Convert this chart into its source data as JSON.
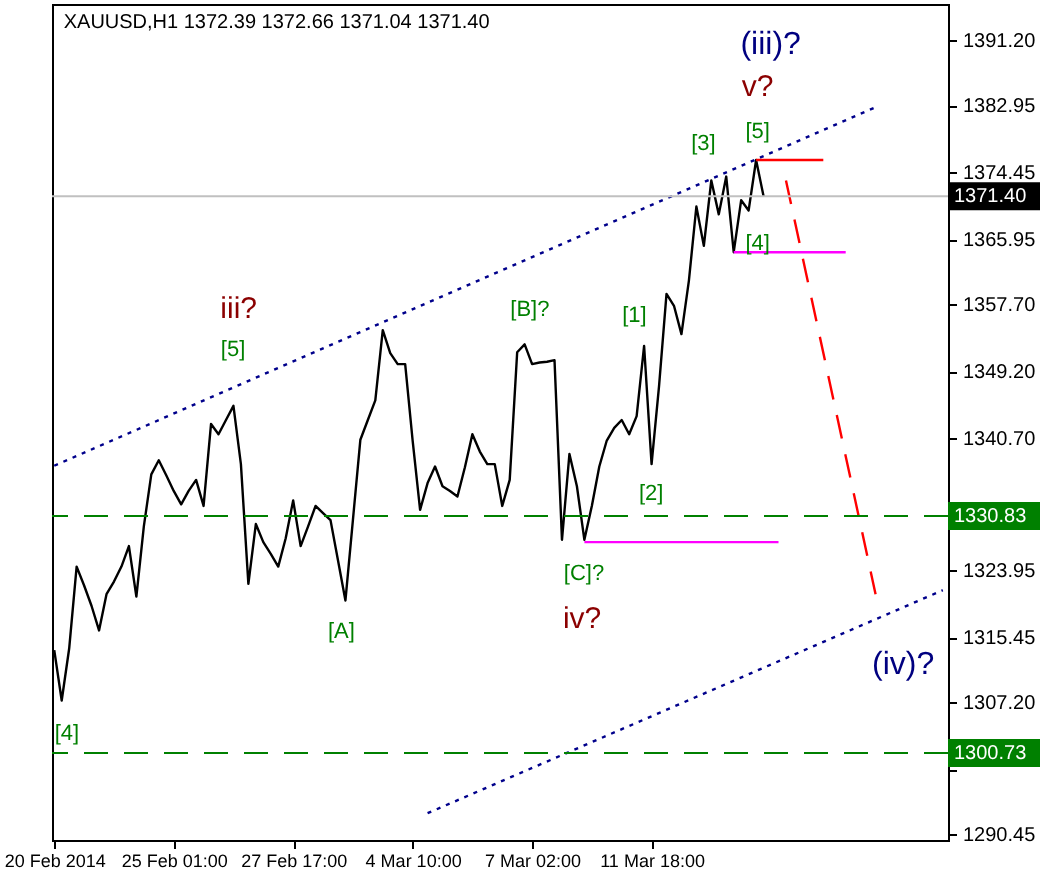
{
  "chart_data": {
    "type": "line",
    "title": "XAUUSD,H1  1372.39 1372.66 1371.04 1371.40",
    "categories": [
      "20 Feb 2014",
      null,
      null,
      null,
      null,
      null,
      null,
      null,
      null,
      null,
      null,
      null,
      null,
      null,
      null,
      null,
      "25 Feb 01:00",
      null,
      null,
      null,
      null,
      null,
      null,
      null,
      null,
      null,
      null,
      null,
      null,
      null,
      null,
      null,
      "27 Feb 17:00",
      null,
      null,
      null,
      null,
      null,
      null,
      null,
      null,
      null,
      null,
      null,
      null,
      null,
      null,
      null,
      "4 Mar 10:00",
      null,
      null,
      null,
      null,
      null,
      null,
      null,
      null,
      null,
      null,
      null,
      null,
      null,
      null,
      null,
      "7 Mar 02:00",
      null,
      null,
      null,
      null,
      null,
      null,
      null,
      null,
      null,
      null,
      null,
      null,
      null,
      null,
      null,
      "11 Mar 18:00",
      null,
      null,
      null,
      null,
      null,
      null,
      null,
      null,
      null,
      null,
      null,
      null,
      null,
      null,
      null,
      null,
      null,
      null,
      null,
      null,
      null,
      null,
      null,
      null,
      null,
      null,
      null,
      null,
      null,
      null,
      null,
      null,
      null,
      null,
      null,
      null,
      null,
      null,
      null
    ],
    "ylim": [
      1289.7,
      1395.8
    ],
    "yticks": [
      {
        "value": 1290.45,
        "label": "1290.45"
      },
      {
        "value": 1298.7,
        "label": null
      },
      {
        "value": 1307.2,
        "label": "1307.20"
      },
      {
        "value": 1315.45,
        "label": "1315.45"
      },
      {
        "value": 1323.95,
        "label": "1323.95"
      },
      {
        "value": 1332.45,
        "label": null
      },
      {
        "value": 1340.7,
        "label": "1340.70"
      },
      {
        "value": 1349.2,
        "label": "1349.20"
      },
      {
        "value": 1357.7,
        "label": "1357.70"
      },
      {
        "value": 1365.95,
        "label": "1365.95"
      },
      {
        "value": 1374.45,
        "label": "1374.45"
      },
      {
        "value": 1382.95,
        "label": "1382.95"
      },
      {
        "value": 1391.2,
        "label": "1391.20"
      }
    ],
    "series": [
      {
        "color": "#000000",
        "line_style": "solid",
        "values": [
          1313.8,
          1307.4,
          1314.0,
          1324.4,
          1322.0,
          1319.4,
          1316.3,
          1320.9,
          1322.5,
          1324.4,
          1327.0,
          1320.6,
          1329.5,
          1336.1,
          1337.9,
          1336.0,
          1334.0,
          1332.3,
          1334.0,
          1335.4,
          1332.1,
          1342.5,
          1341.2,
          1343.0,
          1344.8,
          1337.4,
          1322.2,
          1329.8,
          1327.5,
          1326.0,
          1324.4,
          1328.0,
          1332.8,
          1327.0,
          1329.5,
          1332.1,
          1331.2,
          1330.3,
          1325.2,
          1320.1,
          1330.3,
          1340.5,
          1343.0,
          1345.5,
          1354.4,
          1351.5,
          1350.1,
          1350.1,
          1340.4,
          1331.6,
          1335.0,
          1337.1,
          1334.6,
          1334.0,
          1333.3,
          1337.0,
          1341.2,
          1339.0,
          1337.4,
          1337.4,
          1332.1,
          1335.4,
          1351.6,
          1352.6,
          1350.1,
          1350.3,
          1350.4,
          1350.6,
          1327.8,
          1338.7,
          1334.6,
          1327.8,
          1332.1,
          1337.1,
          1340.4,
          1342.0,
          1343.0,
          1341.2,
          1343.5,
          1352.4,
          1337.4,
          1347.3,
          1359.0,
          1357.5,
          1353.9,
          1360.7,
          1370.1,
          1365.1,
          1373.4,
          1369.1,
          1373.9,
          1364.3,
          1370.9,
          1369.6,
          1376.0,
          1371.4,
          null,
          null,
          null,
          null,
          null,
          null,
          null,
          null,
          null,
          null,
          null,
          null,
          null,
          null,
          null,
          null,
          null,
          null,
          null,
          null,
          null,
          null,
          null,
          null
        ]
      },
      {
        "color": "#00008b",
        "line_style": "dotted",
        "values": [
          1337.2,
          null,
          null,
          null,
          null,
          null,
          null,
          null,
          null,
          null,
          null,
          null,
          null,
          null,
          null,
          null,
          null,
          null,
          null,
          null,
          null,
          null,
          null,
          null,
          null,
          null,
          null,
          null,
          null,
          null,
          null,
          null,
          null,
          null,
          null,
          null,
          null,
          null,
          null,
          null,
          null,
          null,
          null,
          null,
          null,
          null,
          null,
          null,
          null,
          null,
          null,
          null,
          null,
          null,
          null,
          null,
          null,
          null,
          null,
          null,
          null,
          null,
          null,
          null,
          null,
          null,
          null,
          null,
          null,
          null,
          null,
          null,
          null,
          null,
          null,
          null,
          null,
          null,
          null,
          null,
          null,
          null,
          null,
          null,
          null,
          null,
          null,
          null,
          null,
          null,
          null,
          null,
          null,
          null,
          null,
          null,
          null,
          null,
          null,
          null,
          null,
          null,
          null,
          null,
          null,
          null,
          null,
          null,
          null,
          null,
          1382.7,
          null,
          null,
          null,
          null,
          null,
          null,
          null,
          null,
          null
        ]
      },
      {
        "color": "#00008b",
        "line_style": "dotted",
        "values": [
          null,
          null,
          null,
          null,
          null,
          null,
          null,
          null,
          null,
          null,
          null,
          null,
          null,
          null,
          null,
          null,
          null,
          null,
          null,
          null,
          null,
          null,
          null,
          null,
          null,
          null,
          null,
          null,
          null,
          null,
          null,
          null,
          null,
          null,
          null,
          null,
          null,
          null,
          null,
          null,
          null,
          null,
          null,
          null,
          null,
          null,
          null,
          null,
          null,
          null,
          1293.1,
          null,
          null,
          null,
          null,
          null,
          null,
          null,
          null,
          null,
          null,
          null,
          null,
          null,
          null,
          null,
          null,
          null,
          null,
          null,
          null,
          null,
          null,
          null,
          null,
          null,
          null,
          null,
          null,
          null,
          null,
          null,
          null,
          null,
          null,
          null,
          null,
          null,
          null,
          null,
          null,
          null,
          null,
          null,
          null,
          null,
          null,
          null,
          null,
          null,
          null,
          null,
          null,
          null,
          null,
          null,
          null,
          null,
          null,
          null,
          null,
          null,
          null,
          null,
          null,
          null,
          null,
          null,
          null,
          1321.4
        ]
      },
      {
        "color": "#ff0000",
        "line_style": "dashed",
        "values": [
          null,
          null,
          null,
          null,
          null,
          null,
          null,
          null,
          null,
          null,
          null,
          null,
          null,
          null,
          null,
          null,
          null,
          null,
          null,
          null,
          null,
          null,
          null,
          null,
          null,
          null,
          null,
          null,
          null,
          null,
          null,
          null,
          null,
          null,
          null,
          null,
          null,
          null,
          null,
          null,
          null,
          null,
          null,
          null,
          null,
          null,
          null,
          null,
          null,
          null,
          null,
          null,
          null,
          null,
          null,
          null,
          null,
          null,
          null,
          null,
          null,
          null,
          null,
          null,
          null,
          null,
          null,
          null,
          null,
          null,
          null,
          null,
          null,
          null,
          null,
          null,
          null,
          null,
          null,
          null,
          null,
          null,
          null,
          null,
          null,
          null,
          null,
          null,
          null,
          null,
          null,
          null,
          null,
          null,
          null,
          null,
          null,
          null,
          1373.4,
          null,
          null,
          null,
          null,
          null,
          null,
          null,
          null,
          null,
          null,
          null,
          1320.9,
          null,
          null,
          null,
          null,
          null,
          null,
          null,
          null,
          null
        ]
      },
      {
        "color": "#ff0000",
        "line_style": "solid",
        "values": [
          null,
          null,
          null,
          null,
          null,
          null,
          null,
          null,
          null,
          null,
          null,
          null,
          null,
          null,
          null,
          null,
          null,
          null,
          null,
          null,
          null,
          null,
          null,
          null,
          null,
          null,
          null,
          null,
          null,
          null,
          null,
          null,
          null,
          null,
          null,
          null,
          null,
          null,
          null,
          null,
          null,
          null,
          null,
          null,
          null,
          null,
          null,
          null,
          null,
          null,
          null,
          null,
          null,
          null,
          null,
          null,
          null,
          null,
          null,
          null,
          null,
          null,
          null,
          null,
          null,
          null,
          null,
          null,
          null,
          null,
          null,
          null,
          null,
          null,
          null,
          null,
          null,
          null,
          null,
          null,
          null,
          null,
          null,
          null,
          null,
          null,
          null,
          null,
          null,
          null,
          null,
          null,
          null,
          null,
          1376.0,
          null,
          null,
          null,
          null,
          null,
          null,
          null,
          null,
          1376.0,
          null,
          null,
          null,
          null,
          null,
          null,
          null,
          null,
          null,
          null,
          null,
          null,
          null,
          null,
          null,
          null
        ]
      },
      {
        "color": "#ff00ff",
        "line_style": "solid",
        "values": [
          null,
          null,
          null,
          null,
          null,
          null,
          null,
          null,
          null,
          null,
          null,
          null,
          null,
          null,
          null,
          null,
          null,
          null,
          null,
          null,
          null,
          null,
          null,
          null,
          null,
          null,
          null,
          null,
          null,
          null,
          null,
          null,
          null,
          null,
          null,
          null,
          null,
          null,
          null,
          null,
          null,
          null,
          null,
          null,
          null,
          null,
          null,
          null,
          null,
          null,
          null,
          null,
          null,
          null,
          null,
          null,
          null,
          null,
          null,
          null,
          null,
          null,
          null,
          null,
          null,
          null,
          null,
          null,
          null,
          null,
          null,
          null,
          null,
          null,
          null,
          null,
          null,
          null,
          null,
          null,
          null,
          null,
          null,
          null,
          null,
          null,
          null,
          null,
          null,
          null,
          null,
          1364.3,
          null,
          null,
          null,
          null,
          null,
          null,
          null,
          null,
          null,
          null,
          null,
          null,
          null,
          null,
          1364.3,
          null,
          null,
          null,
          null,
          null,
          null,
          null,
          null,
          null,
          null,
          null,
          null,
          null
        ]
      },
      {
        "color": "#ff00ff",
        "line_style": "solid",
        "values": [
          null,
          null,
          null,
          null,
          null,
          null,
          null,
          null,
          null,
          null,
          null,
          null,
          null,
          null,
          null,
          null,
          null,
          null,
          null,
          null,
          null,
          null,
          null,
          null,
          null,
          null,
          null,
          null,
          null,
          null,
          null,
          null,
          null,
          null,
          null,
          null,
          null,
          null,
          null,
          null,
          null,
          null,
          null,
          null,
          null,
          null,
          null,
          null,
          null,
          null,
          null,
          null,
          null,
          null,
          null,
          null,
          null,
          null,
          null,
          null,
          null,
          null,
          null,
          null,
          null,
          null,
          null,
          null,
          null,
          null,
          null,
          1327.5,
          null,
          null,
          null,
          null,
          null,
          null,
          null,
          null,
          null,
          null,
          null,
          null,
          null,
          null,
          null,
          null,
          null,
          null,
          null,
          null,
          null,
          null,
          null,
          null,
          null,
          1327.5,
          null,
          null,
          null,
          null,
          null,
          null,
          null,
          null,
          null,
          null,
          null,
          null,
          null,
          null,
          null,
          null,
          null,
          null,
          null,
          null,
          null,
          null
        ]
      }
    ],
    "ref_lines": [
      {
        "axis": "y",
        "value": 1371.4,
        "label": "1371.40",
        "color": "#c0c0c0",
        "line_style": "solid"
      },
      {
        "axis": "y",
        "value": 1330.83,
        "label": "1330.83",
        "color": "#008000",
        "line_style": "dashed"
      },
      {
        "axis": "y",
        "value": 1300.73,
        "label": "1300.73",
        "color": "#008000",
        "line_style": "dashed"
      }
    ],
    "annotations": [
      "[4]",
      "[5]",
      "iii?",
      "[A]",
      "[B]?",
      "[C]?",
      "iv?",
      "[1]",
      "[2]",
      "[3]",
      "[5]",
      "[4]",
      "v?",
      "(iii)?",
      "(iv)?"
    ]
  }
}
